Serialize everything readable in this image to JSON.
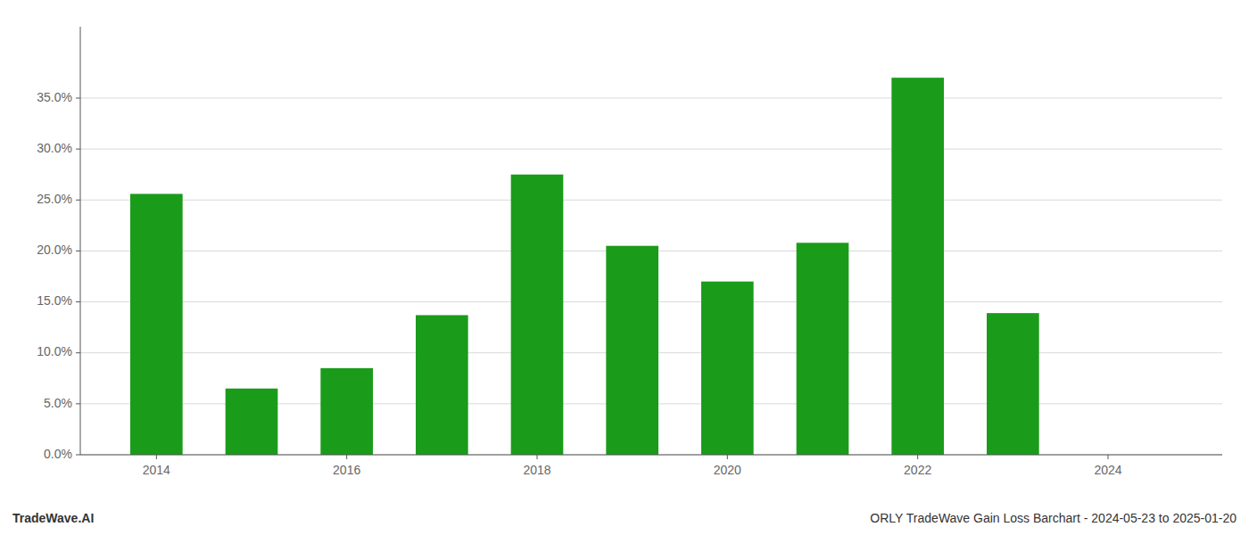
{
  "chart_data": {
    "type": "bar",
    "x": [
      2014,
      2015,
      2016,
      2017,
      2018,
      2019,
      2020,
      2021,
      2022,
      2023
    ],
    "values": [
      0.256,
      0.065,
      0.085,
      0.137,
      0.275,
      0.205,
      0.17,
      0.208,
      0.37,
      0.139
    ],
    "color": "#1a9c1a",
    "ylim": [
      0,
      0.42
    ],
    "yticks": [
      {
        "value": 0.0,
        "label": "0.0%"
      },
      {
        "value": 0.05,
        "label": "5.0%"
      },
      {
        "value": 0.1,
        "label": "10.0%"
      },
      {
        "value": 0.15,
        "label": "15.0%"
      },
      {
        "value": 0.2,
        "label": "20.0%"
      },
      {
        "value": 0.25,
        "label": "25.0%"
      },
      {
        "value": 0.3,
        "label": "30.0%"
      },
      {
        "value": 0.35,
        "label": "35.0%"
      }
    ],
    "xlim": [
      2013.2,
      2025.2
    ],
    "xticks": [
      2014,
      2016,
      2018,
      2020,
      2022,
      2024
    ],
    "grid": true,
    "annotations": [
      "TradeWave.AI",
      "ORLY TradeWave Gain Loss Barchart - 2024-05-23 to 2025-01-20"
    ]
  }
}
